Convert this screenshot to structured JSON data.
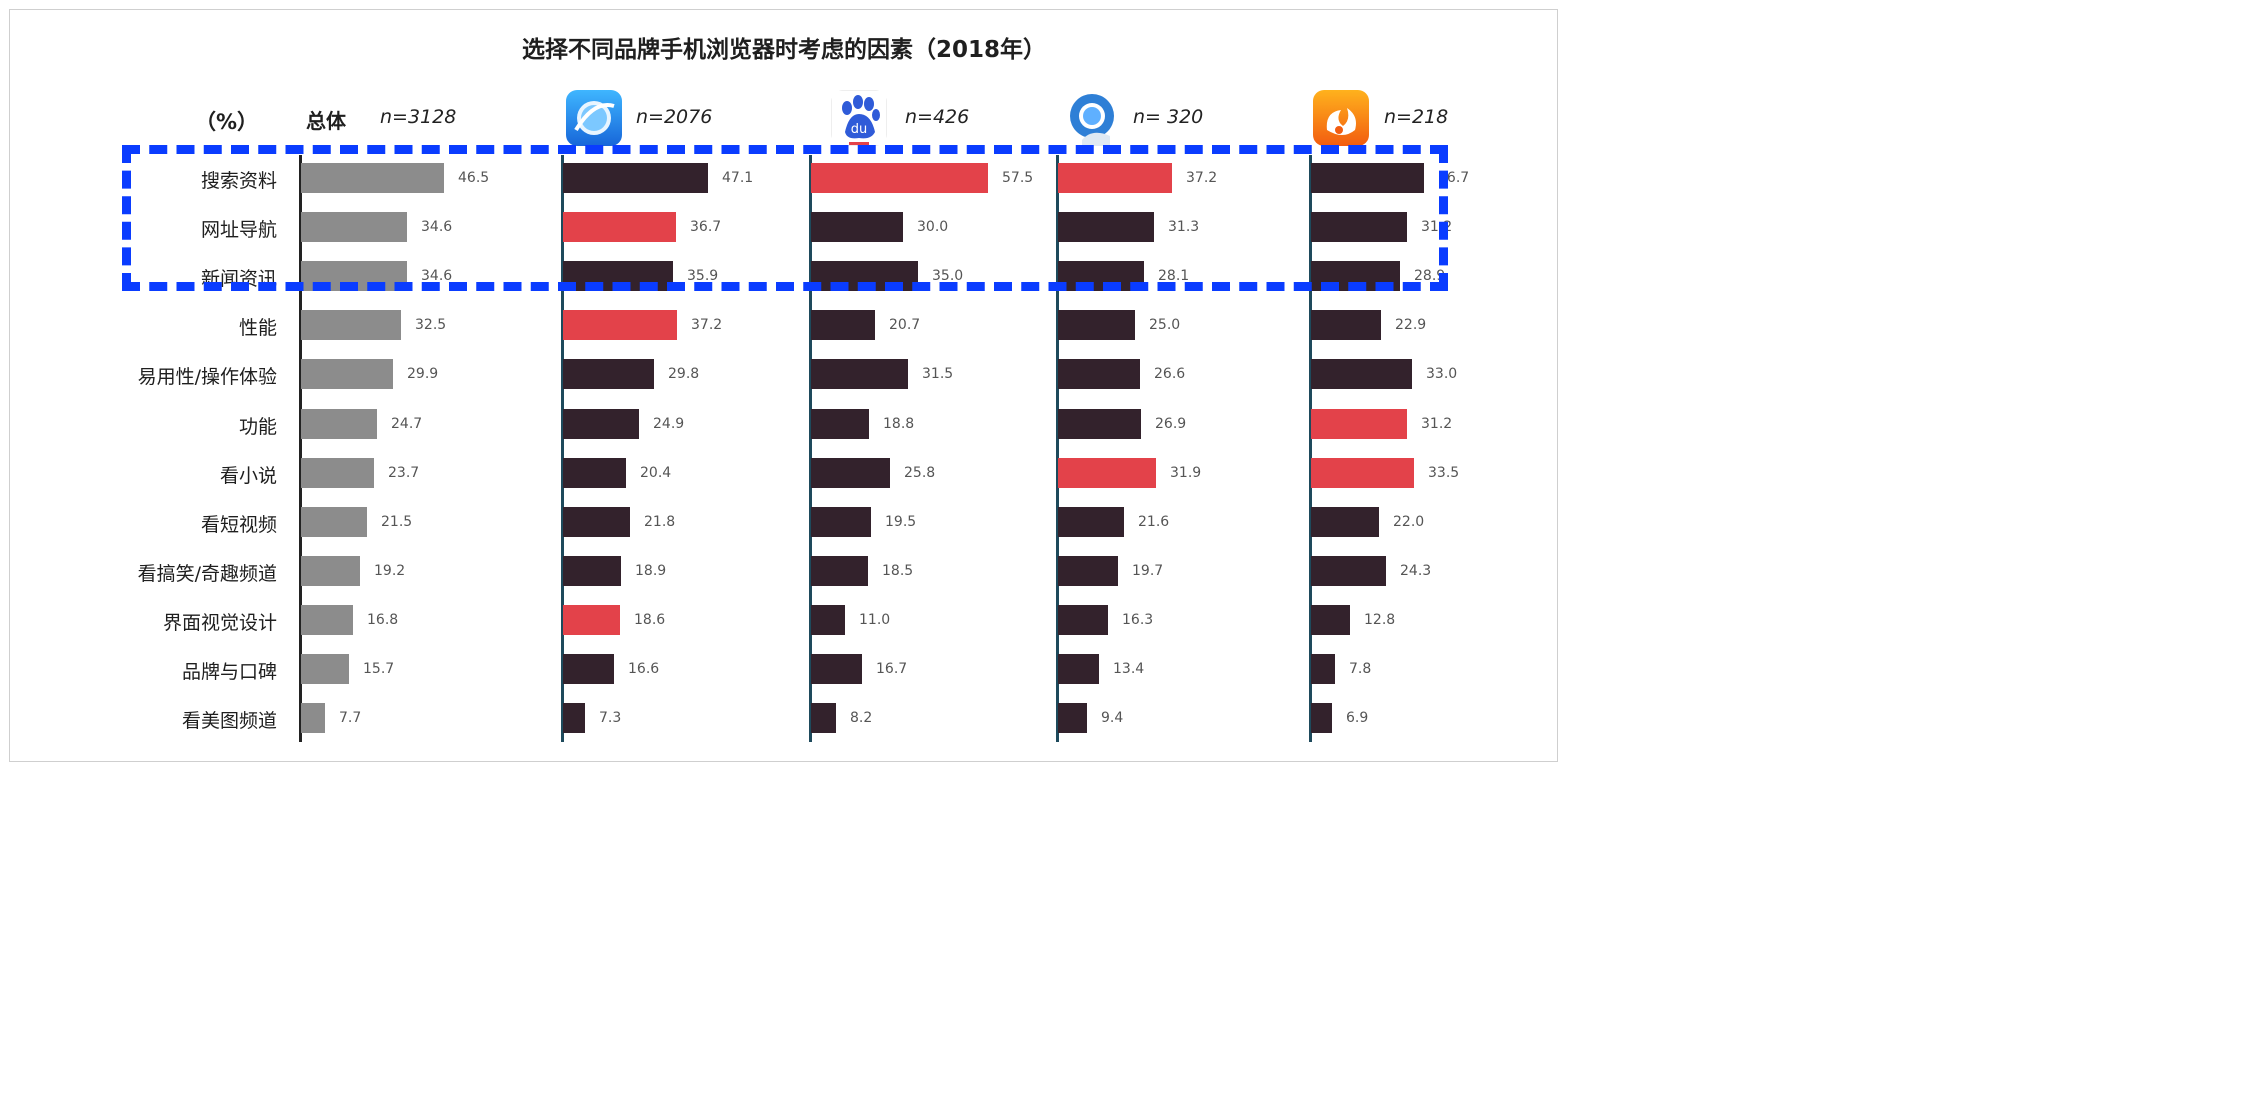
{
  "chart_data": {
    "type": "bar",
    "title": "选择不同品牌手机浏览器时考虑的因素（2018年）",
    "unit": "（%）",
    "overall_label": "总体",
    "categories": [
      "搜索资料",
      "网址导航",
      "新闻资讯",
      "性能",
      "易用性/操作体验",
      "功能",
      "看小说",
      "看短视频",
      "看搞笑/奇趣频道",
      "界面视觉设计",
      "品牌与口碑",
      "看美图频道"
    ],
    "series": [
      {
        "n": "n=3128",
        "values": [
          46.5,
          34.6,
          34.6,
          32.5,
          29.9,
          24.7,
          23.7,
          21.5,
          19.2,
          16.8,
          15.7,
          7.7
        ],
        "highlight": []
      },
      {
        "n": "n=2076",
        "values": [
          47.1,
          36.7,
          35.9,
          37.2,
          29.8,
          24.9,
          20.4,
          21.8,
          18.9,
          18.6,
          16.6,
          7.3
        ],
        "highlight": [
          1,
          3,
          9
        ]
      },
      {
        "n": "n=426",
        "values": [
          57.5,
          30.0,
          35.0,
          20.7,
          31.5,
          18.8,
          25.8,
          19.5,
          18.5,
          11.0,
          16.7,
          8.2
        ],
        "highlight": [
          0
        ]
      },
      {
        "n": "n= 320",
        "values": [
          37.2,
          31.3,
          28.1,
          25.0,
          26.6,
          26.9,
          31.9,
          21.6,
          19.7,
          16.3,
          13.4,
          9.4
        ],
        "highlight": [
          0,
          6
        ]
      },
      {
        "n": "n=218",
        "values": [
          36.7,
          31.2,
          28.9,
          22.9,
          33.0,
          31.2,
          33.5,
          22.0,
          24.3,
          12.8,
          7.8,
          6.9
        ],
        "highlight": [
          5,
          6
        ]
      }
    ],
    "highlight_box_rows": [
      0,
      1,
      2
    ],
    "colors": {
      "overall": "#8c8c8c",
      "default": "#33222c",
      "highlight": "#e3424a",
      "box": "#0a3cff",
      "axis_overall": "#222222",
      "axis_brand": "#1e4a5c"
    }
  },
  "logos": [
    "browser-globe-icon",
    "baidu-paw-icon",
    "qq-browser-icon",
    "uc-squirrel-icon"
  ]
}
